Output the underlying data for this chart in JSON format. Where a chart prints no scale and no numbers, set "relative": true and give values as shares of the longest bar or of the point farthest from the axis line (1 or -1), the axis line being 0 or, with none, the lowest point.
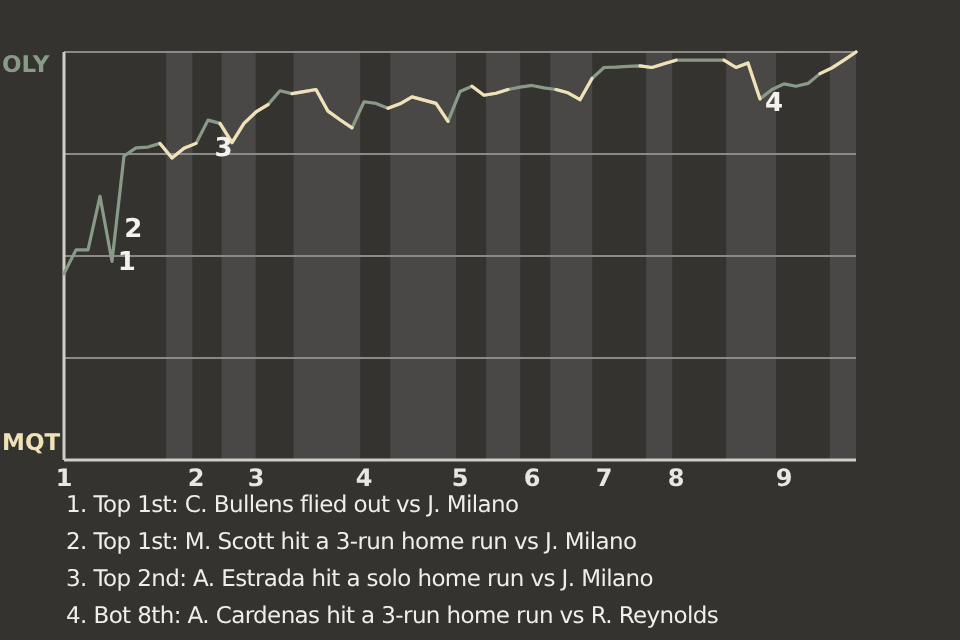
{
  "chart_data": {
    "type": "line",
    "relative": true,
    "categories": [
      "1",
      null,
      null,
      null,
      null,
      null,
      null,
      null,
      null,
      null,
      null,
      "2",
      null,
      null,
      null,
      null,
      "3",
      null,
      null,
      null,
      null,
      null,
      null,
      null,
      null,
      "4",
      null,
      null,
      null,
      null,
      null,
      null,
      null,
      "5",
      null,
      null,
      null,
      null,
      null,
      "6",
      null,
      null,
      null,
      null,
      null,
      "7",
      null,
      null,
      null,
      null,
      null,
      "8",
      null,
      null,
      null,
      null,
      null,
      null,
      null,
      null,
      "9",
      null,
      null,
      null,
      null,
      null,
      null
    ],
    "marker": "none",
    "series": [
      {
        "color": "#8a9a88",
        "values": [
          0.457,
          0.515,
          0.515,
          0.646,
          0.487,
          0.745,
          0.765,
          0.767,
          0.776,
          0.74,
          0.764,
          0.776,
          0.833,
          0.825,
          0.778,
          0.825,
          0.853,
          0.871,
          0.905,
          0.898,
          0.903,
          0.908,
          0.855,
          0.834,
          0.814,
          0.878,
          0.874,
          0.862,
          0.873,
          0.89,
          0.882,
          0.874,
          0.83,
          0.903,
          0.916,
          0.894,
          0.899,
          0.908,
          0.914,
          0.918,
          0.912,
          0.908,
          0.9,
          0.883,
          0.935,
          0.962,
          0.963,
          0.965,
          0.966,
          0.962,
          0.971,
          0.98,
          0.98,
          0.98,
          0.98,
          0.98,
          0.962,
          0.973,
          0.885,
          0.908,
          0.922,
          0.916,
          0.923,
          0.947,
          0.961,
          0.98,
          1.0
        ]
      },
      {
        "color": "#f0e2b6",
        "values": [
          null,
          null,
          null,
          null,
          null,
          null,
          null,
          null,
          0.776,
          0.74,
          0.764,
          0.776,
          null,
          0.825,
          0.778,
          0.825,
          0.853,
          0.871,
          null,
          0.898,
          0.903,
          0.908,
          0.855,
          0.834,
          0.814,
          null,
          null,
          0.862,
          0.873,
          0.89,
          0.882,
          0.874,
          0.83,
          null,
          0.916,
          0.894,
          0.899,
          0.908,
          null,
          null,
          null,
          0.908,
          0.9,
          0.883,
          0.935,
          null,
          null,
          null,
          0.966,
          0.962,
          0.971,
          0.98,
          null,
          null,
          null,
          0.98,
          0.962,
          0.973,
          0.885,
          null,
          null,
          null,
          null,
          0.947,
          0.961,
          0.98,
          1.0
        ]
      }
    ],
    "annotations": [
      "OLY",
      "MQT",
      "1",
      "2",
      "3",
      "4",
      "1. Top 1st: C. Bullens flied out vs J. Milano",
      "2. Top 1st: M. Scott hit a 3-run home run vs J. Milano",
      "3. Top 2nd: A. Estrada hit a solo home run vs J. Milano",
      "4. Bot 8th: A. Cardenas hit a 3-run home run vs R. Reynolds"
    ]
  }
}
